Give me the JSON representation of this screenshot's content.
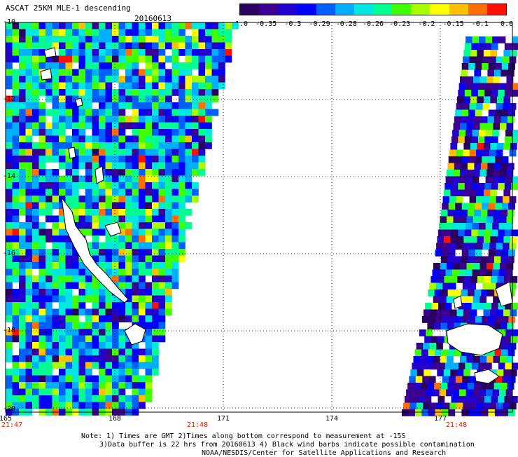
{
  "header": {
    "title": "ASCAT 25KM MLE-1 descending",
    "date": "20160613"
  },
  "colorbar": {
    "labels": [
      "-1.0",
      "-0.35",
      "-0.3",
      "-0.29",
      "-0.28",
      "-0.26",
      "-0.23",
      "-0.2",
      "-0.15",
      "-0.1",
      "0.0"
    ],
    "colors": [
      "#2a0060",
      "#3a0090",
      "#2200d0",
      "#0000ff",
      "#0060ff",
      "#00b0ff",
      "#00e8e0",
      "#00ff90",
      "#40ff00",
      "#a8ff00",
      "#ffff00",
      "#ffc000",
      "#ff7000",
      "#ff1000"
    ]
  },
  "axes": {
    "lat_labels": [
      "-10",
      "-12",
      "-14",
      "-16",
      "-18",
      "-20"
    ],
    "lon_labels": [
      "165",
      "168",
      "171",
      "174",
      "177"
    ]
  },
  "times": {
    "left": "21:47",
    "middle": "21:48",
    "right": "21:48"
  },
  "notes": {
    "line1": "Note: 1) Times are GMT 2)Times along bottom correspond to measurement at -15S",
    "line2": "3)Data buffer is 22 hrs from 20160613 4) Black wind barbs indicate possible contamination",
    "line3": "NOAA/NESDIS/Center for Satellite Applications and Research"
  }
}
